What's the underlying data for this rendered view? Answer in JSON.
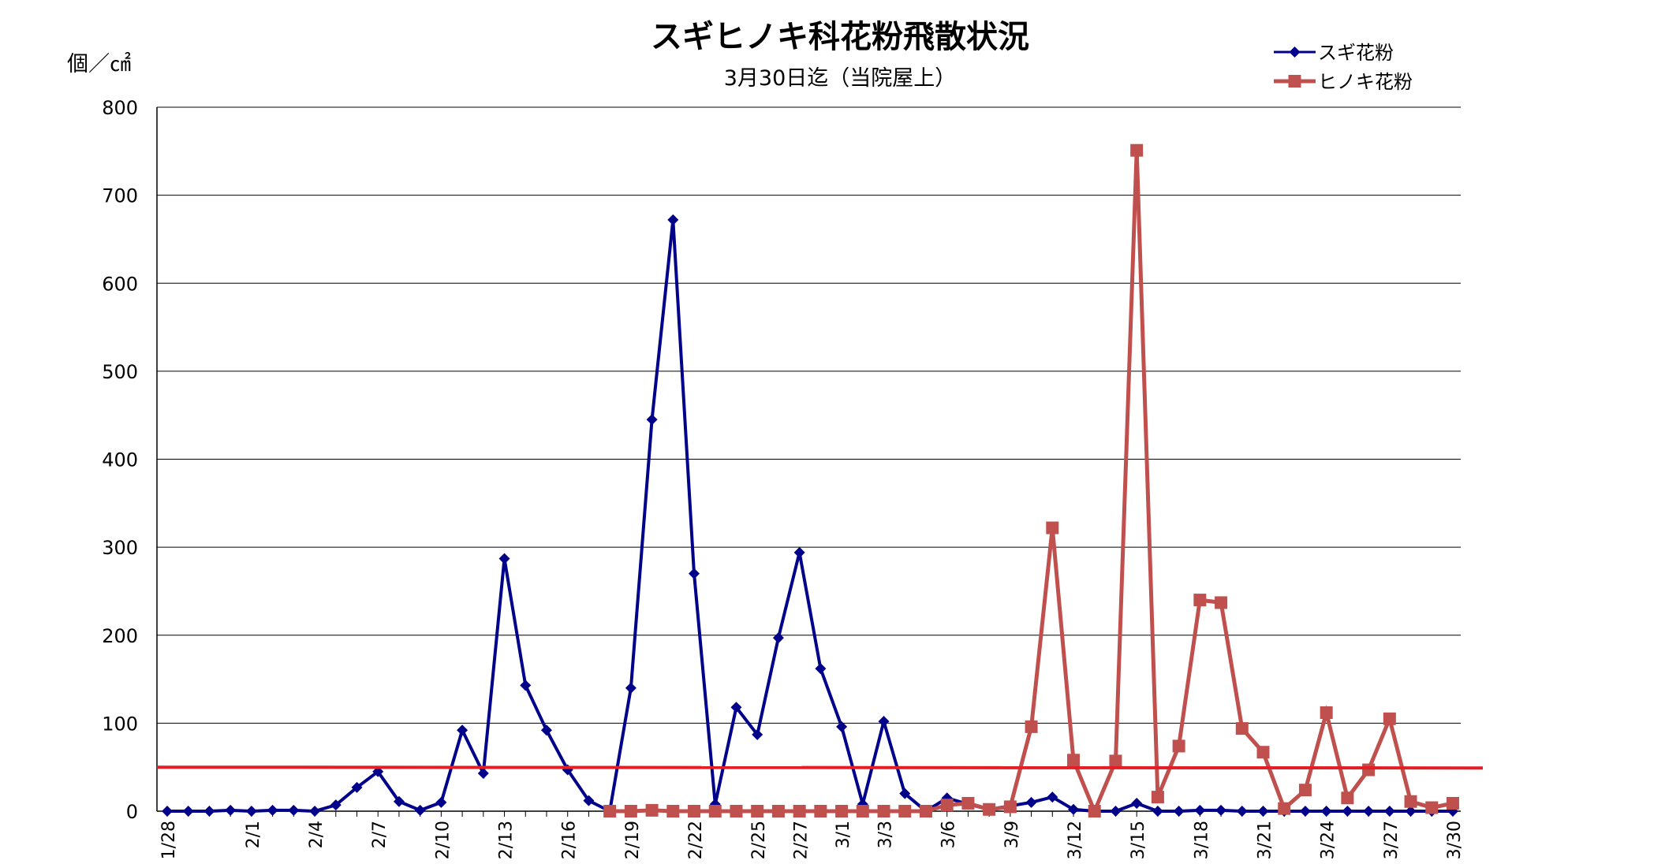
{
  "chart_data": {
    "type": "line",
    "title": "スギヒノキ科花粉飛散状況",
    "subtitle": "3月30日迄（当院屋上）",
    "ylabel": "個／㎠",
    "xlabel": "",
    "ylim": [
      0,
      800
    ],
    "yticks": [
      0,
      100,
      200,
      300,
      400,
      500,
      600,
      700,
      800
    ],
    "grid": true,
    "legend_position": "top-right",
    "x": [
      "1/28",
      "1/29",
      "1/30",
      "1/31",
      "2/1",
      "2/2",
      "2/3",
      "2/4",
      "2/5",
      "2/6",
      "2/7",
      "2/8",
      "2/9",
      "2/10",
      "2/11",
      "2/12",
      "2/13",
      "2/14",
      "2/15",
      "2/16",
      "2/17",
      "2/18",
      "2/19",
      "2/20",
      "2/21",
      "2/22",
      "2/23",
      "2/24",
      "2/25",
      "2/26",
      "2/27",
      "2/28",
      "3/1",
      "3/2",
      "3/3",
      "3/4",
      "3/5",
      "3/6",
      "3/7",
      "3/8",
      "3/9",
      "3/10",
      "3/11",
      "3/12",
      "3/13",
      "3/14",
      "3/15",
      "3/16",
      "3/17",
      "3/18",
      "3/19",
      "3/20",
      "3/21",
      "3/22",
      "3/23",
      "3/24",
      "3/25",
      "3/26",
      "3/27",
      "3/28",
      "3/29",
      "3/30"
    ],
    "x_tick_labels": [
      "1/28",
      "",
      "",
      "",
      "2/1",
      "",
      "",
      "2/4",
      "",
      "",
      "2/7",
      "",
      "",
      "2/10",
      "",
      "",
      "2/13",
      "",
      "",
      "2/16",
      "",
      "",
      "2/19",
      "",
      "",
      "2/22",
      "",
      "",
      "2/25",
      "",
      "2/27",
      "",
      "3/1",
      "",
      "3/3",
      "",
      "",
      "3/6",
      "",
      "",
      "3/9",
      "",
      "",
      "3/12",
      "",
      "",
      "3/15",
      "",
      "",
      "3/18",
      "",
      "",
      "3/21",
      "",
      "",
      "3/24",
      "",
      "",
      "3/27",
      "",
      "",
      "3/30"
    ],
    "series": [
      {
        "name": "スギ花粉",
        "color": "#00008B",
        "marker": "diamond",
        "values": [
          0,
          0,
          0,
          1,
          0,
          1,
          1,
          0,
          7,
          27,
          45,
          11,
          1,
          10,
          92,
          43,
          287,
          143,
          92,
          47,
          12,
          0,
          140,
          445,
          672,
          270,
          8,
          118,
          87,
          197,
          294,
          162,
          96,
          8,
          102,
          20,
          0,
          15,
          8,
          2,
          6,
          10,
          16,
          2,
          0,
          0,
          9,
          0,
          0,
          1,
          1,
          0,
          0,
          0,
          0,
          0,
          0,
          0,
          0,
          0,
          0,
          0
        ]
      },
      {
        "name": "ヒノキ花粉",
        "color": "#C0504D",
        "marker": "square",
        "values": [
          null,
          null,
          null,
          null,
          null,
          null,
          null,
          null,
          null,
          null,
          null,
          null,
          null,
          null,
          null,
          null,
          null,
          null,
          null,
          null,
          null,
          0,
          0,
          1,
          0,
          0,
          0,
          0,
          0,
          0,
          0,
          0,
          0,
          0,
          0,
          0,
          0,
          7,
          9,
          2,
          5,
          96,
          322,
          58,
          0,
          57,
          751,
          16,
          74,
          240,
          237,
          94,
          67,
          3,
          24,
          112,
          15,
          47,
          105,
          11,
          4,
          9
        ]
      }
    ],
    "reference_line": {
      "value": 50,
      "color": "#E31E24"
    }
  }
}
